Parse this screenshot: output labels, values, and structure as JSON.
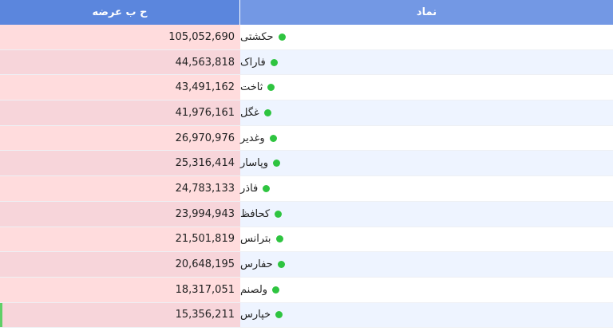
{
  "header": {
    "supply_label": "ح ب عرضه",
    "symbol_label": "نماد"
  },
  "colors": {
    "header_left": "#5b86dd",
    "header_right": "#7398e4",
    "supply_bg": "#ffdcdd",
    "row_alt": "#eef4ff",
    "status_dot": "#2ec440"
  },
  "rows": [
    {
      "symbol": "حکشتی",
      "supply": "105,052,690"
    },
    {
      "symbol": "فاراک",
      "supply": "44,563,818"
    },
    {
      "symbol": "ثاخت",
      "supply": "43,491,162"
    },
    {
      "symbol": "غگل",
      "supply": "41,976,161"
    },
    {
      "symbol": "وغدیر",
      "supply": "26,970,976"
    },
    {
      "symbol": "وپاسار",
      "supply": "25,316,414"
    },
    {
      "symbol": "فاذر",
      "supply": "24,783,133"
    },
    {
      "symbol": "کحافظ",
      "supply": "23,994,943"
    },
    {
      "symbol": "بترانس",
      "supply": "21,501,819"
    },
    {
      "symbol": "حفارس",
      "supply": "20,648,195"
    },
    {
      "symbol": "ولصنم",
      "supply": "18,317,051"
    },
    {
      "symbol": "خپارس",
      "supply": "15,356,211"
    }
  ]
}
